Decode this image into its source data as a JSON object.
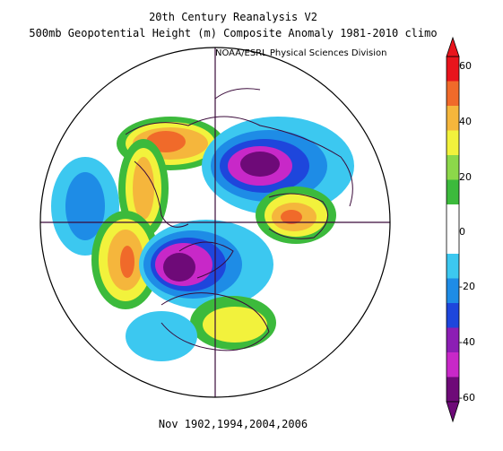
{
  "title": {
    "line1": "20th Century Reanalysis V2",
    "line2": "500mb Geopotential Height (m) Composite Anomaly 1981-2010 climo"
  },
  "credit": "NOAA/ESRL Physical Sciences Division",
  "footer": "Nov 1902,1994,2004,2006",
  "colorbar": {
    "labels": [
      "60",
      "40",
      "20",
      "0",
      "-20",
      "-40",
      "-60"
    ],
    "colors": [
      "#e8141c",
      "#f06a2a",
      "#f5b63c",
      "#f2f23c",
      "#8cd84a",
      "#3cba3c",
      "#ffffff",
      "#ffffff",
      "#3cc8f0",
      "#1e8ce6",
      "#1e46dc",
      "#8c1eb4",
      "#c828c8",
      "#6e0a78"
    ]
  },
  "map": {
    "projection": "north polar stereographic",
    "colors": {
      "strong_positive": "#f06a2a",
      "positive": "#f5b63c",
      "weak_positive": "#f2f23c",
      "green": "#3cba3c",
      "light_blue": "#3cc8f0",
      "blue": "#1e8ce6",
      "deep_blue": "#1e46dc",
      "purple": "#8c1eb4",
      "magenta": "#c828c8",
      "dark_purple": "#6e0a78"
    }
  }
}
